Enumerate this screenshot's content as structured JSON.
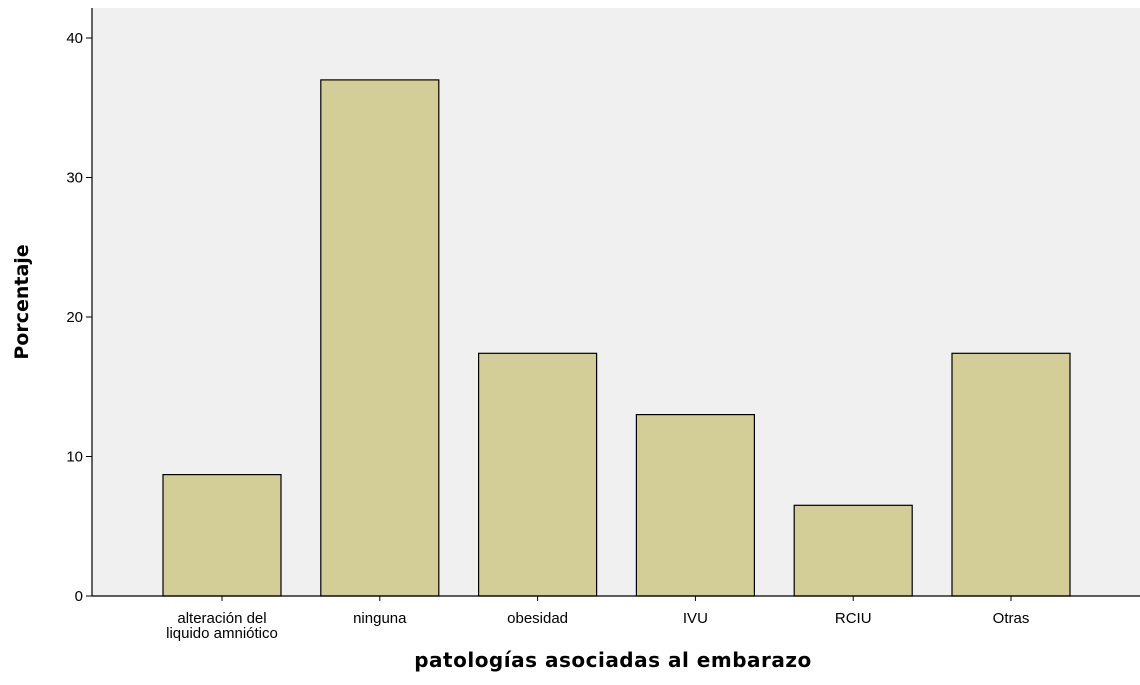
{
  "chart_data": {
    "type": "bar",
    "title": "",
    "xlabel": "patologías asociadas al embarazo",
    "ylabel": "Porcentaje",
    "categories": [
      [
        "alteración del",
        "liquido amniótico"
      ],
      [
        "ninguna"
      ],
      [
        "obesidad"
      ],
      [
        "IVU"
      ],
      [
        "RCIU"
      ],
      [
        "Otras"
      ]
    ],
    "values": [
      8.7,
      37.0,
      17.4,
      13.0,
      6.5,
      17.4
    ],
    "ylim": [
      0,
      42
    ],
    "yticks": [
      0,
      10,
      20,
      30,
      40
    ],
    "grid": false,
    "legend": "none",
    "colors": {
      "bar_fill": "#d3ce97",
      "bar_stroke": "#000000",
      "plot_background": "#f0f0f0"
    }
  }
}
